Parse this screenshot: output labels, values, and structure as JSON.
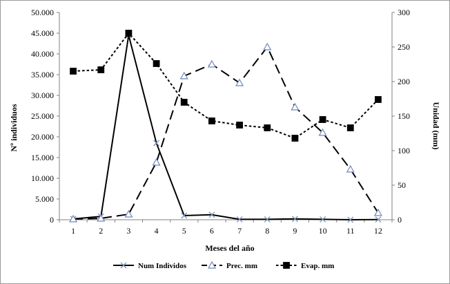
{
  "chart_data": {
    "type": "line",
    "title": "",
    "xlabel": "Meses del año",
    "ylabel": "Nº individuos",
    "y2label": "Unidad (mm)",
    "x": [
      1,
      2,
      3,
      4,
      5,
      6,
      7,
      8,
      9,
      10,
      11,
      12
    ],
    "x_ticks": [
      "1",
      "2",
      "3",
      "4",
      "5",
      "6",
      "7",
      "8",
      "9",
      "10",
      "11",
      "12"
    ],
    "ylim": [
      0,
      50000
    ],
    "y2lim": [
      0,
      300
    ],
    "y_ticks": [
      "0",
      "5.000",
      "10.000",
      "15.000",
      "20.000",
      "25.000",
      "30.000",
      "35.000",
      "40.000",
      "45.000",
      "50.000"
    ],
    "y2_ticks": [
      "0",
      "50",
      "100",
      "150",
      "200",
      "250",
      "300"
    ],
    "grid": false,
    "legend_position": "bottom",
    "series": [
      {
        "name": "Num Individos",
        "axis": "left",
        "line_style": "solid",
        "marker": "x",
        "color": "#000000",
        "marker_color": "#7b8fb5",
        "values": [
          200,
          800,
          44500,
          18500,
          1000,
          1200,
          100,
          100,
          200,
          100,
          0,
          50
        ]
      },
      {
        "name": "Prec. mm",
        "axis": "right",
        "line_style": "long-dash",
        "marker": "triangle",
        "color": "#000000",
        "marker_color": "#6f86b5",
        "values": [
          1,
          2,
          8,
          83,
          208,
          225,
          198,
          250,
          163,
          126,
          73,
          10
        ]
      },
      {
        "name": "Evap. mm",
        "axis": "right",
        "line_style": "short-dash",
        "marker": "square",
        "color": "#000000",
        "marker_color": "#000000",
        "values": [
          215,
          217,
          270,
          226,
          170,
          143,
          137,
          133,
          118,
          145,
          133,
          174
        ]
      }
    ]
  }
}
